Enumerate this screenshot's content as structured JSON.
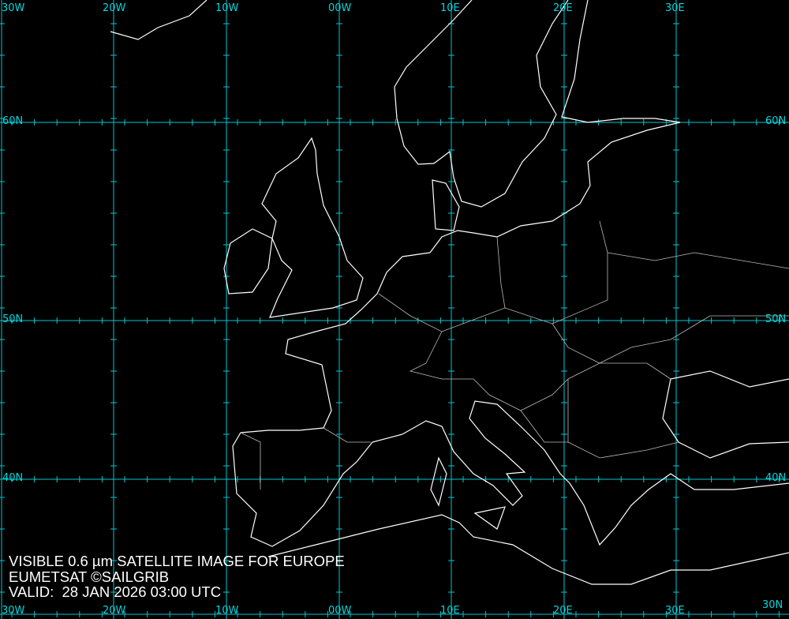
{
  "caption": {
    "line1": "VISIBLE 0.6 µm SATELLITE IMAGE FOR EUROPE",
    "line2": "EUMETSAT ©SAILGRIB",
    "line3": "VALID:  28 JAN 2026 03:00 UTC"
  },
  "grid": {
    "longitude_labels": [
      "30W",
      "20W",
      "10W",
      "00W",
      "10E",
      "20E",
      "30E"
    ],
    "latitude_labels": [
      "60N",
      "50N",
      "40N",
      "30N"
    ],
    "color": "#00c8d0"
  },
  "colors": {
    "background": "#000000",
    "coastline": "#ffffff",
    "borders": "#bbbbbb"
  }
}
